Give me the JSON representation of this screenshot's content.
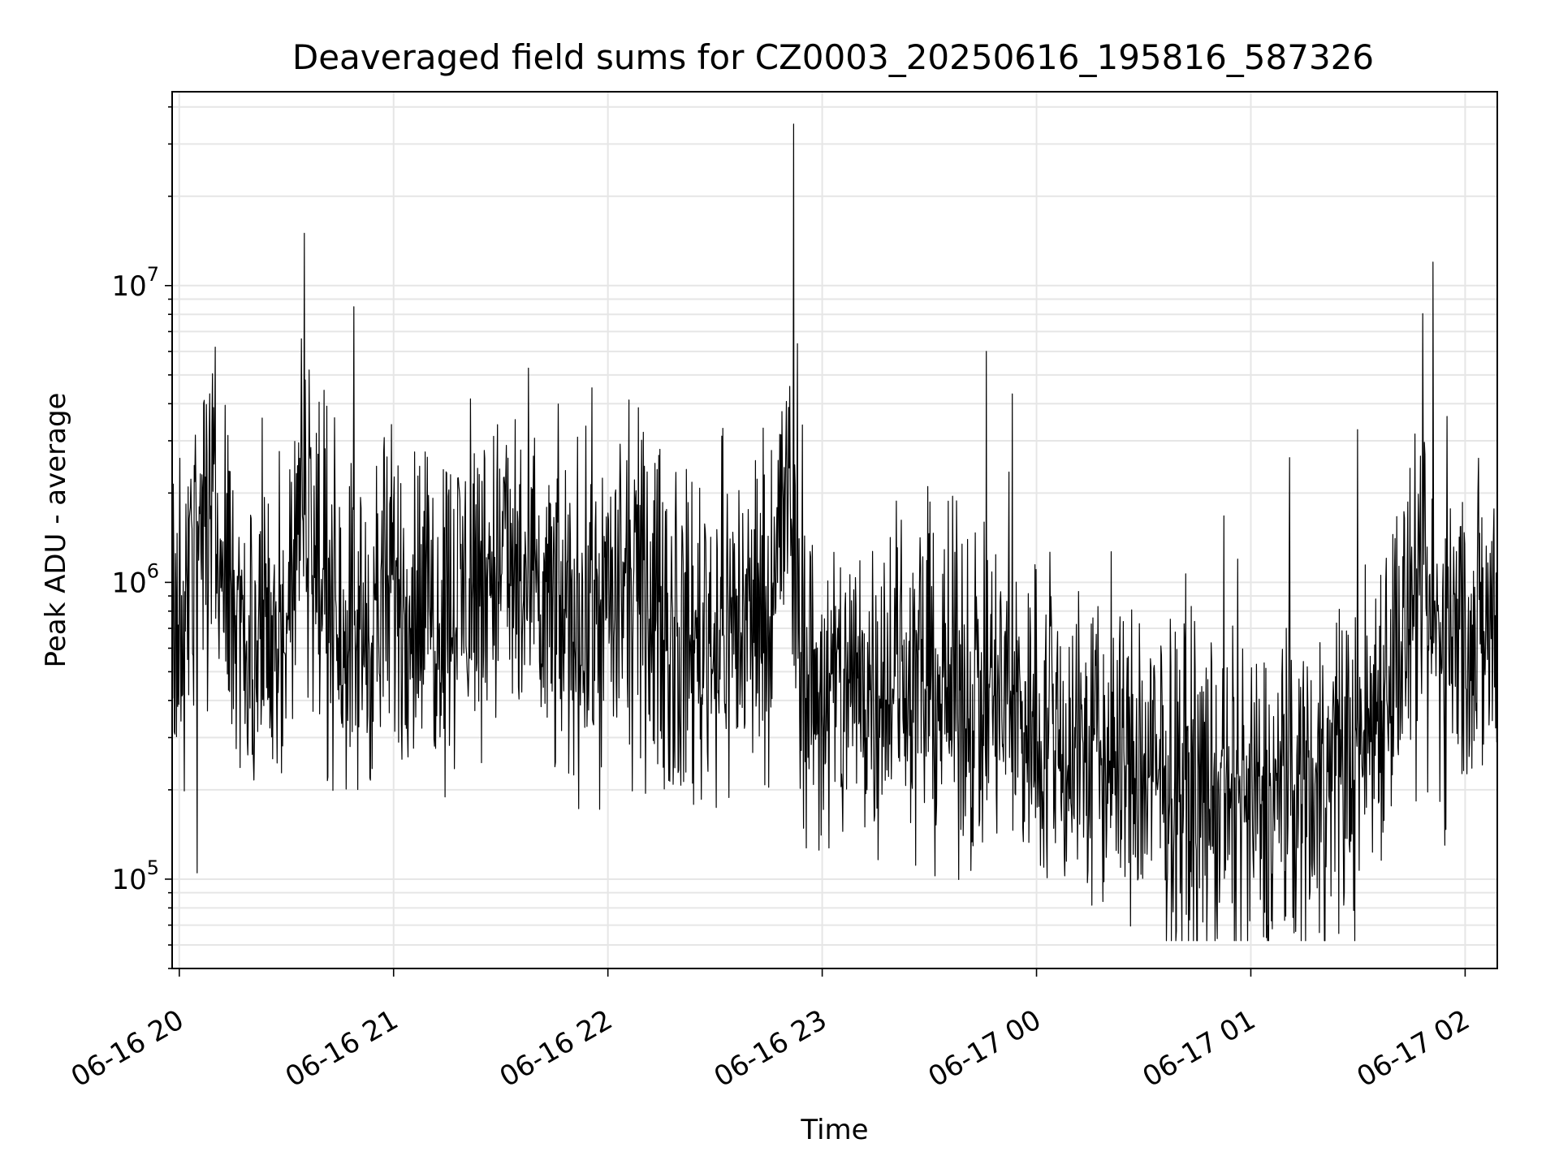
{
  "chart_data": {
    "type": "line",
    "title": "Deaveraged field sums for CZ0003_20250616_195816_587326",
    "xlabel": "Time",
    "ylabel": "Peak ADU - average",
    "y_scale": "log",
    "ylim": [
      50000,
      45000000
    ],
    "xlim": [
      "2025-06-16 19:58",
      "2025-06-17 02:09"
    ],
    "grid": true,
    "line_color": "#000000",
    "x_ticks": [
      {
        "t": "2025-06-16 20:00",
        "label": "06-16 20"
      },
      {
        "t": "2025-06-16 21:00",
        "label": "06-16 21"
      },
      {
        "t": "2025-06-16 22:00",
        "label": "06-16 22"
      },
      {
        "t": "2025-06-16 23:00",
        "label": "06-16 23"
      },
      {
        "t": "2025-06-17 00:00",
        "label": "06-17 00"
      },
      {
        "t": "2025-06-17 01:00",
        "label": "06-17 01"
      },
      {
        "t": "2025-06-17 02:00",
        "label": "06-17 02"
      }
    ],
    "y_ticks": [
      {
        "value": 100000,
        "base": "10",
        "exp": "5"
      },
      {
        "value": 1000000,
        "base": "10",
        "exp": "6"
      },
      {
        "value": 10000000,
        "base": "10",
        "exp": "7"
      }
    ],
    "series": [
      {
        "x": [
          "2025-06-16 19:58",
          "2025-06-16 20:05",
          "2025-06-16 20:10",
          "2025-06-16 20:15",
          "2025-06-16 20:20",
          "2025-06-16 20:30",
          "2025-06-16 20:35",
          "2025-06-16 20:40",
          "2025-06-16 20:45",
          "2025-06-16 20:50",
          "2025-06-16 21:00",
          "2025-06-16 21:10",
          "2025-06-16 21:20",
          "2025-06-16 21:30",
          "2025-06-16 21:40",
          "2025-06-16 21:50",
          "2025-06-16 22:00",
          "2025-06-16 22:10",
          "2025-06-16 22:20",
          "2025-06-16 22:30",
          "2025-06-16 22:40",
          "2025-06-16 22:45",
          "2025-06-16 22:50",
          "2025-06-16 22:55",
          "2025-06-16 23:00",
          "2025-06-16 23:10",
          "2025-06-16 23:20",
          "2025-06-16 23:30",
          "2025-06-16 23:40",
          "2025-06-16 23:50",
          "2025-06-17 00:00",
          "2025-06-17 00:10",
          "2025-06-17 00:20",
          "2025-06-17 00:30",
          "2025-06-17 00:40",
          "2025-06-17 00:50",
          "2025-06-17 01:00",
          "2025-06-17 01:05",
          "2025-06-17 01:10",
          "2025-06-17 01:20",
          "2025-06-17 01:30",
          "2025-06-17 01:40",
          "2025-06-17 01:45",
          "2025-06-17 01:50",
          "2025-06-17 02:00",
          "2025-06-17 02:09"
        ],
        "y": [
          700000,
          1200000,
          1600000,
          900000,
          600000,
          700000,
          2200000,
          900000,
          800000,
          650000,
          900000,
          800000,
          950000,
          1200000,
          800000,
          750000,
          850000,
          900000,
          600000,
          700000,
          750000,
          800000,
          2000000,
          500000,
          400000,
          450000,
          500000,
          450000,
          420000,
          400000,
          330000,
          280000,
          250000,
          220000,
          200000,
          180000,
          160000,
          170000,
          200000,
          220000,
          260000,
          600000,
          700000,
          650000,
          650000,
          700000
        ]
      }
    ],
    "annotations": [
      {
        "t": "2025-06-16 20:35",
        "value": 15000000
      },
      {
        "t": "2025-06-16 22:52",
        "value": 35000000
      },
      {
        "t": "2025-06-17 01:51",
        "value": 12000000
      },
      {
        "t": "2025-06-16 20:05",
        "value": 105000
      },
      {
        "t": "2025-06-17 01:06",
        "value": 68000
      }
    ]
  }
}
